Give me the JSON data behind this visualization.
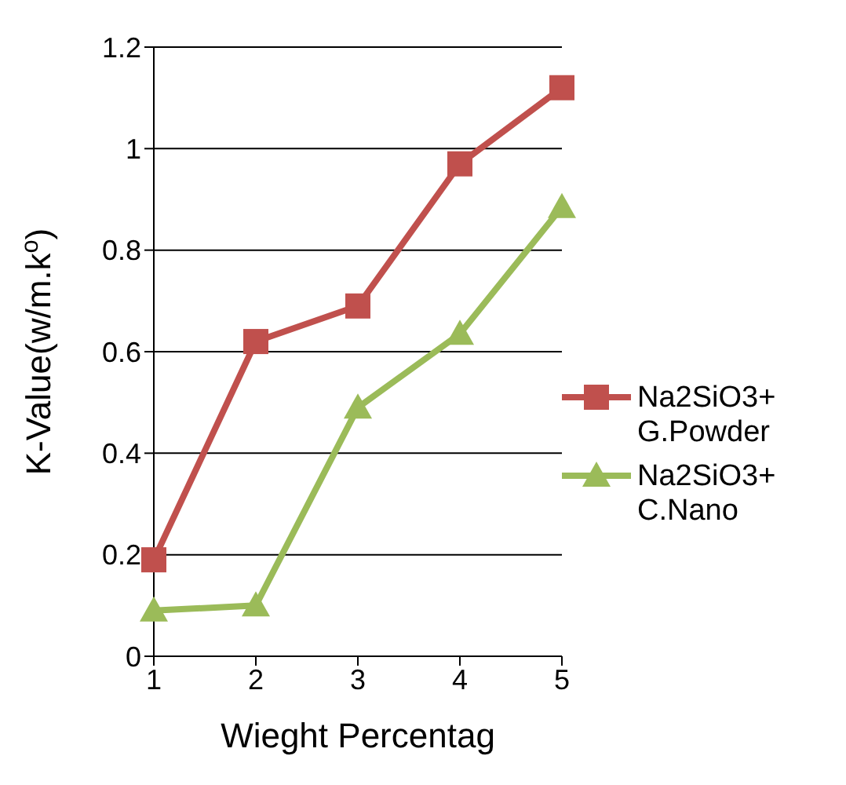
{
  "chart_data": {
    "type": "line",
    "xlabel": "Wieght Percentag",
    "ylabel": "K-Value(w/m.k$^{o}$)",
    "categories": [
      "1",
      "2",
      "3",
      "4",
      "5"
    ],
    "series": [
      {
        "name": "Na2SiO3+ G.Powder",
        "color": "#c0504d",
        "marker": "square",
        "values": [
          0.19,
          0.62,
          0.69,
          0.97,
          1.12
        ]
      },
      {
        "name": "Na2SiO3+ C.Nano",
        "color": "#9bbb59",
        "marker": "triangle",
        "values": [
          0.09,
          0.1,
          0.49,
          0.635,
          0.885
        ]
      }
    ],
    "ylim": [
      0,
      1.2
    ],
    "yticks": [
      0,
      0.2,
      0.4,
      0.6,
      0.8,
      1,
      1.2
    ],
    "grid": "y",
    "legend": "right"
  }
}
